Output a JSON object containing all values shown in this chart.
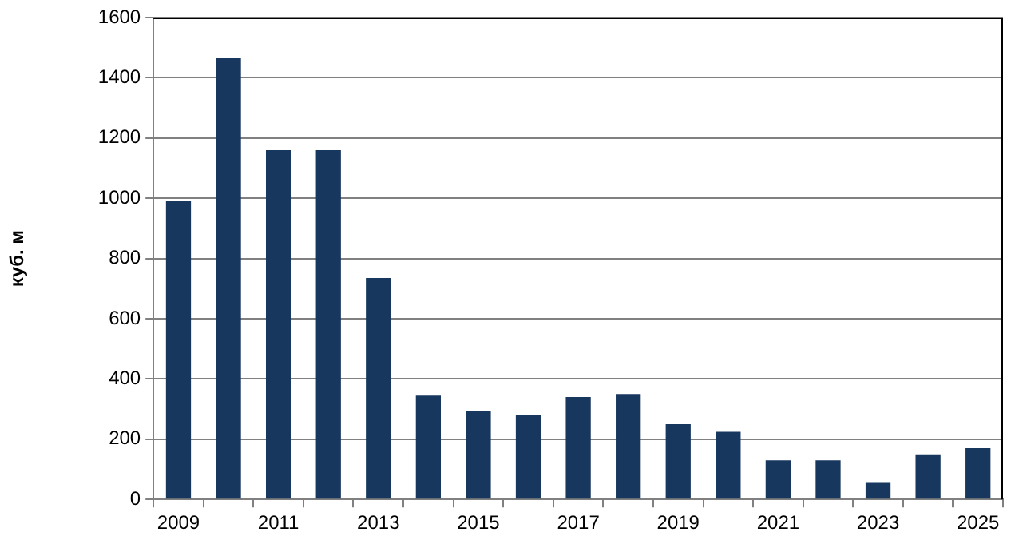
{
  "chart_data": {
    "type": "bar",
    "ylabel": "куб. м",
    "categories": [
      "2009",
      null,
      "2011",
      null,
      "2013",
      null,
      "2015",
      null,
      "2017",
      null,
      "2019",
      null,
      "2021",
      null,
      "2023",
      null,
      "2025"
    ],
    "values": [
      990,
      1465,
      1160,
      1160,
      735,
      345,
      295,
      280,
      340,
      350,
      250,
      225,
      130,
      130,
      55,
      150,
      170
    ],
    "color": "#17375e",
    "ylim": [
      0,
      1600
    ],
    "yticks": [
      0,
      200,
      400,
      600,
      800,
      1000,
      1200,
      1400,
      1600
    ],
    "grid": "y",
    "legend": false
  }
}
